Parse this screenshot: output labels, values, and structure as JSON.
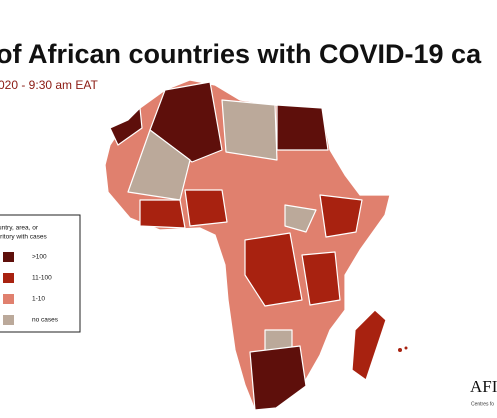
{
  "title": "of African countries with COVID-19 ca",
  "subtitle": "020 - 9:30 am EAT",
  "legend": {
    "title_lines": [
      "untry, area, or",
      "rritory with cases"
    ],
    "items": [
      {
        "label": ">100",
        "color": "#5e0f0b"
      },
      {
        "label": "11-100",
        "color": "#a82210"
      },
      {
        "label": "1-10",
        "color": "#e0806e"
      },
      {
        "label": "no cases",
        "color": "#bba99a"
      }
    ]
  },
  "logo": {
    "name": "AFI",
    "sub": "Centres fo"
  }
}
